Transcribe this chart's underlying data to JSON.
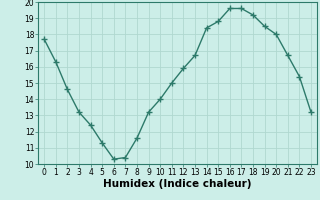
{
  "x": [
    0,
    1,
    2,
    3,
    4,
    5,
    6,
    7,
    8,
    9,
    10,
    11,
    12,
    13,
    14,
    15,
    16,
    17,
    18,
    19,
    20,
    21,
    22,
    23
  ],
  "y": [
    17.7,
    16.3,
    14.6,
    13.2,
    12.4,
    11.3,
    10.3,
    10.4,
    11.6,
    13.2,
    14.0,
    15.0,
    15.9,
    16.7,
    18.4,
    18.8,
    19.6,
    19.6,
    19.2,
    18.5,
    18.0,
    16.7,
    15.4,
    13.2
  ],
  "line_color": "#2d7a6a",
  "marker": "P",
  "marker_size": 2.5,
  "bg_color": "#cceee8",
  "grid_color": "#b0d8d0",
  "xlabel": "Humidex (Indice chaleur)",
  "ylim": [
    10,
    20
  ],
  "xlim_min": -0.5,
  "xlim_max": 23.5,
  "yticks": [
    10,
    11,
    12,
    13,
    14,
    15,
    16,
    17,
    18,
    19,
    20
  ],
  "xticks": [
    0,
    1,
    2,
    3,
    4,
    5,
    6,
    7,
    8,
    9,
    10,
    11,
    12,
    13,
    14,
    15,
    16,
    17,
    18,
    19,
    20,
    21,
    22,
    23
  ],
  "xtick_labels": [
    "0",
    "1",
    "2",
    "3",
    "4",
    "5",
    "6",
    "7",
    "8",
    "9",
    "10",
    "11",
    "12",
    "13",
    "14",
    "15",
    "16",
    "17",
    "18",
    "19",
    "20",
    "21",
    "22",
    "23"
  ],
  "tick_fontsize": 5.5,
  "xlabel_fontsize": 7.5,
  "line_width": 1.0,
  "spine_color": "#2d7a6a"
}
